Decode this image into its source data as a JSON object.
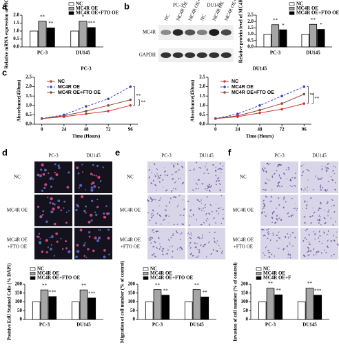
{
  "chart_data": [
    {
      "type": "bar",
      "panel": "a",
      "ylabel": "Relative mRNA expression  of MC4R",
      "categories": [
        "PC-3",
        "DU145"
      ],
      "ylim": [
        0,
        2.0
      ],
      "yticks": [
        {
          "value": 0,
          "label": "0.0"
        },
        {
          "value": 0.5,
          "label": "0.5"
        },
        {
          "value": 1.0,
          "label": "1.0"
        },
        {
          "value": 1.5,
          "label": "1.5"
        },
        {
          "value": 2.0,
          "label": "2.0"
        }
      ],
      "series": [
        {
          "name": "NC",
          "color": "#ffffff",
          "values": [
            1.0,
            1.0
          ]
        },
        {
          "name": "MC4R OE",
          "color": "#a6a6a6",
          "values": [
            1.62,
            1.62
          ],
          "significance": [
            "**",
            "*"
          ]
        },
        {
          "name": "MC4R OE+FTO OE",
          "color": "#000000",
          "values": [
            1.2,
            1.22
          ],
          "significance": [
            "**",
            "***"
          ]
        }
      ]
    },
    {
      "type": "bar",
      "panel": "b",
      "ylabel": "Relative protein level of MC4R",
      "categories": [
        "PC-3",
        "DU145"
      ],
      "ylim": [
        0,
        2.5
      ],
      "yticks": [
        {
          "value": 0,
          "label": "0.0"
        },
        {
          "value": 0.5,
          "label": "0.5"
        },
        {
          "value": 1.0,
          "label": "1.0"
        },
        {
          "value": 1.5,
          "label": "1.5"
        },
        {
          "value": 2.0,
          "label": "2.0"
        },
        {
          "value": 2.5,
          "label": "2.5"
        }
      ],
      "series": [
        {
          "name": "NC",
          "color": "#ffffff",
          "values": [
            1.0,
            1.0
          ]
        },
        {
          "name": "MC4R OE",
          "color": "#a6a6a6",
          "values": [
            1.75,
            1.78
          ],
          "significance": [
            "**",
            "**"
          ]
        },
        {
          "name": "MC4R OE+FTO OE",
          "color": "#000000",
          "values": [
            1.35,
            1.38
          ],
          "significance": [
            "*",
            "*"
          ]
        }
      ]
    },
    {
      "type": "line",
      "panel": "c",
      "title": "PC-3",
      "xlabel": "Time (Hours)",
      "ylabel": "Absorbance(450nm)",
      "x": [
        0,
        24,
        48,
        72,
        96
      ],
      "xlim": [
        -8,
        104
      ],
      "xticks": [
        0,
        24,
        48,
        72,
        96
      ],
      "ylim": [
        0,
        2.5
      ],
      "yticks": [
        {
          "value": 0,
          "label": "0.0"
        },
        {
          "value": 0.5,
          "label": "0.5"
        },
        {
          "value": 1.0,
          "label": "1.0"
        },
        {
          "value": 1.5,
          "label": "1.5"
        },
        {
          "value": 2.0,
          "label": "2.0"
        },
        {
          "value": 2.5,
          "label": "2.5"
        }
      ],
      "significance": [
        "**",
        "**"
      ],
      "series": [
        {
          "name": "NC",
          "color": "#e03030",
          "linestyle": "solid",
          "values": [
            0.3,
            0.4,
            0.55,
            0.7,
            1.0
          ]
        },
        {
          "name": "MC4R OE",
          "color": "#3a3ad8",
          "linestyle": "dashed",
          "values": [
            0.3,
            0.5,
            0.95,
            1.35,
            2.0
          ]
        },
        {
          "name": "MC4R OE+FTO OE",
          "color": "#8b4a3a",
          "linestyle": "solid",
          "values": [
            0.3,
            0.45,
            0.7,
            1.0,
            1.3
          ]
        }
      ]
    },
    {
      "type": "line",
      "title": "DU145",
      "xlabel": "Time (Hours)",
      "ylabel": "Absorbance(450nm)",
      "x": [
        0,
        24,
        48,
        72,
        96
      ],
      "xlim": [
        -8,
        104
      ],
      "xticks": [
        0,
        24,
        48,
        72,
        96
      ],
      "ylim": [
        0,
        2.5
      ],
      "yticks": [
        {
          "value": 0,
          "label": "0.0"
        },
        {
          "value": 0.5,
          "label": "0.5"
        },
        {
          "value": 1.0,
          "label": "1.0"
        },
        {
          "value": 1.5,
          "label": "1.5"
        },
        {
          "value": 2.0,
          "label": "2.0"
        },
        {
          "value": 2.5,
          "label": "2.5"
        }
      ],
      "significance": [
        "**",
        "**"
      ],
      "series": [
        {
          "name": "NC",
          "color": "#e03030",
          "linestyle": "solid",
          "values": [
            0.3,
            0.4,
            0.6,
            0.8,
            1.1
          ]
        },
        {
          "name": "MC4R OE",
          "color": "#3a3ad8",
          "linestyle": "dashed",
          "values": [
            0.3,
            0.55,
            1.0,
            1.5,
            2.0
          ]
        },
        {
          "name": "MC4R OE+FTO OE",
          "color": "#8b4a3a",
          "linestyle": "solid",
          "values": [
            0.3,
            0.45,
            0.75,
            1.1,
            1.6
          ]
        }
      ]
    },
    {
      "type": "bar",
      "ylabel": "Positive EdU Stained Cells (% DAPI)",
      "categories": [
        "PC-3",
        "DU145"
      ],
      "ylim": [
        0,
        200
      ],
      "yticks": [
        0,
        50,
        100,
        150,
        200
      ],
      "series": [
        {
          "name": "NC",
          "color": "#ffffff",
          "values": [
            100,
            100
          ]
        },
        {
          "name": "MC4R OE",
          "color": "#a6a6a6",
          "values": [
            168,
            168
          ],
          "significance": [
            "**",
            "**"
          ]
        },
        {
          "name": "MC4R OE+FTO OE",
          "color": "#000000",
          "values": [
            130,
            122
          ],
          "significance": [
            "***",
            "***"
          ]
        }
      ]
    },
    {
      "type": "bar",
      "ylabel": "Migration of cell number (% of control)",
      "categories": [
        "PC-3",
        "DU145"
      ],
      "ylim": [
        0,
        200
      ],
      "yticks": [
        0,
        50,
        100,
        150,
        200
      ],
      "series": [
        {
          "name": "NC",
          "color": "#ffffff",
          "values": [
            100,
            100
          ]
        },
        {
          "name": "MC4R OE",
          "color": "#a6a6a6",
          "values": [
            170,
            170
          ],
          "significance": [
            "**",
            "**"
          ]
        },
        {
          "name": "MC4R OE+FTO OE",
          "color": "#000000",
          "values": [
            138,
            128
          ],
          "significance": [
            "**",
            "**"
          ]
        }
      ]
    },
    {
      "type": "bar",
      "ylabel": "Invasion of cell number (% of control)",
      "categories": [
        "PC-3",
        "DU145"
      ],
      "ylim": [
        0,
        200
      ],
      "yticks": [
        0,
        50,
        100,
        150,
        200
      ],
      "series": [
        {
          "name": "NC",
          "color": "#ffffff",
          "values": [
            100,
            100
          ]
        },
        {
          "name": "MC4R OE",
          "color": "#a6a6a6",
          "values": [
            178,
            178
          ],
          "significance": [
            "**",
            "**"
          ]
        },
        {
          "name": "MC4R OE+F",
          "color": "#000000",
          "values": [
            140,
            138
          ],
          "significance": [
            "**",
            "***"
          ]
        }
      ]
    }
  ],
  "blot": {
    "groups": [
      "PC-3",
      "DU145"
    ],
    "lanes": [
      "NC",
      "MC4R OE",
      "MC4R OE+FTO OE",
      "NC",
      "MC4R OE",
      "MC4R OE+FTO OE"
    ],
    "proteins": [
      "MC4R",
      "GAPDH"
    ]
  },
  "micrographs": [
    {
      "panel": "d",
      "style": "fluorescence",
      "columns": [
        "PC-3",
        "DU145"
      ],
      "rows": [
        [
          "NC"
        ],
        [
          "MC4R OE"
        ],
        [
          "MC4R OE",
          "+FTO OE"
        ]
      ]
    },
    {
      "panel": "e",
      "style": "transwell",
      "columns": [
        "PC-3",
        "DU145"
      ],
      "rows": [
        [
          "NC"
        ],
        [
          "MC4R OE"
        ],
        [
          "MC4R OE",
          "+FTO OE"
        ]
      ]
    },
    {
      "panel": "f",
      "style": "transwell",
      "columns": [
        "PC-3",
        "DU145"
      ],
      "rows": [
        [
          "NC"
        ],
        [
          "MC4R OE"
        ],
        [
          "MC4R OE",
          "+FTO OE"
        ]
      ]
    }
  ]
}
